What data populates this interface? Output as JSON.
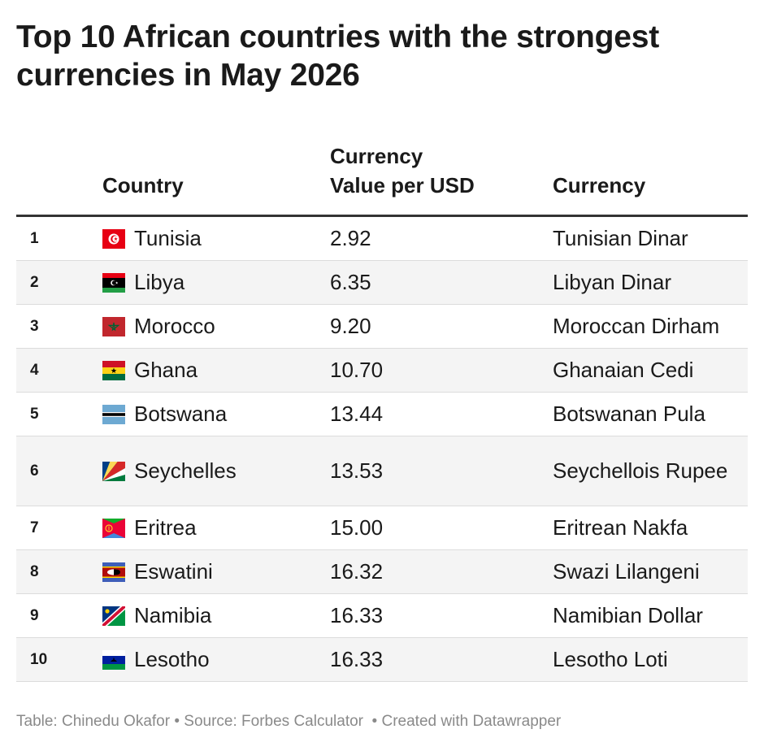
{
  "chart_data": {
    "type": "table",
    "title": "Top 10 African countries with the strongest currencies in May 2026",
    "columns": {
      "rank": "",
      "country": "Country",
      "value_line1": "Currency",
      "value_line2": "Value per USD",
      "currency": "Currency"
    },
    "rows": [
      {
        "rank": "1",
        "country": "Tunisia",
        "value": "2.92",
        "currency": "Tunisian Dinar",
        "flag": "tunisia-flag"
      },
      {
        "rank": "2",
        "country": "Libya",
        "value": "6.35",
        "currency": "Libyan Dinar",
        "flag": "libya-flag"
      },
      {
        "rank": "3",
        "country": "Morocco",
        "value": "9.20",
        "currency": "Moroccan Dirham",
        "flag": "morocco-flag"
      },
      {
        "rank": "4",
        "country": "Ghana",
        "value": "10.70",
        "currency": "Ghanaian Cedi",
        "flag": "ghana-flag"
      },
      {
        "rank": "5",
        "country": "Botswana",
        "value": "13.44",
        "currency": "Botswanan Pula",
        "flag": "botswana-flag"
      },
      {
        "rank": "6",
        "country": "Seychelles",
        "value": "13.53",
        "currency": "Seychellois Rupee",
        "flag": "seychelles-flag"
      },
      {
        "rank": "7",
        "country": "Eritrea",
        "value": "15.00",
        "currency": "Eritrean Nakfa",
        "flag": "eritrea-flag"
      },
      {
        "rank": "8",
        "country": "Eswatini",
        "value": "16.32",
        "currency": "Swazi Lilangeni",
        "flag": "eswatini-flag"
      },
      {
        "rank": "9",
        "country": "Namibia",
        "value": "16.33",
        "currency": "Namibian Dollar",
        "flag": "namibia-flag"
      },
      {
        "rank": "10",
        "country": "Lesotho",
        "value": "16.33",
        "currency": "Lesotho Loti",
        "flag": "lesotho-flag"
      }
    ]
  },
  "footer": {
    "table_credit": "Table: Chinedu Okafor",
    "separator": " • ",
    "source": "Source: Forbes Calculator",
    "separator2": "  • ",
    "created_with": "Created with Datawrapper"
  }
}
